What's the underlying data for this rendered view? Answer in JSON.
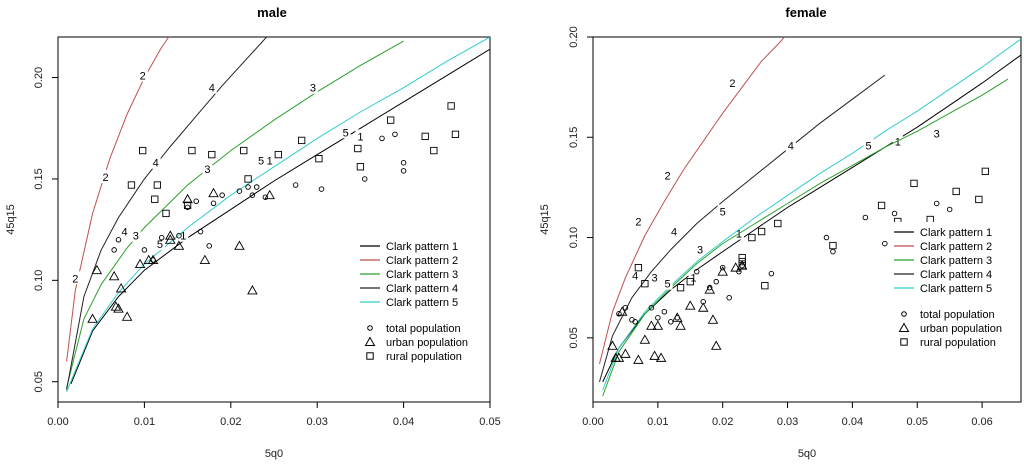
{
  "chart_data": [
    {
      "type": "line",
      "title": "male",
      "xlabel": "5q0",
      "ylabel": "45q15",
      "xlim": [
        0,
        0.05
      ],
      "ylim": [
        0.04,
        0.22
      ],
      "xticks": [
        0.0,
        0.01,
        0.02,
        0.03,
        0.04,
        0.05
      ],
      "xtick_labels": [
        "0.00",
        "0.01",
        "0.02",
        "0.03",
        "0.04",
        "0.05"
      ],
      "yticks": [
        0.05,
        0.1,
        0.15,
        0.2
      ],
      "ytick_labels": [
        "0.05",
        "0.10",
        "0.15",
        "0.20"
      ],
      "series": [
        {
          "name": "Clark pattern 1",
          "label": "1",
          "color": "#000000",
          "x": [
            0.0015,
            0.004,
            0.007,
            0.01,
            0.015,
            0.02,
            0.025,
            0.03,
            0.035,
            0.04,
            0.05
          ],
          "y": [
            0.049,
            0.075,
            0.092,
            0.105,
            0.121,
            0.135,
            0.149,
            0.162,
            0.175,
            0.188,
            0.214
          ],
          "labels_at": [
            [
              0.0145,
              0.122
            ],
            [
              0.0245,
              0.159
            ],
            [
              0.035,
              0.171
            ]
          ]
        },
        {
          "name": "Clark pattern 2",
          "label": "2",
          "color": "#c0504d",
          "x": [
            0.001,
            0.002,
            0.004,
            0.006,
            0.008,
            0.01,
            0.012,
            0.0135
          ],
          "y": [
            0.06,
            0.095,
            0.133,
            0.16,
            0.182,
            0.2,
            0.215,
            0.224
          ],
          "labels_at": [
            [
              0.002,
              0.101
            ],
            [
              0.0055,
              0.151
            ],
            [
              0.0098,
              0.201
            ]
          ]
        },
        {
          "name": "Clark pattern 3",
          "label": "3",
          "color": "#2ca02c",
          "x": [
            0.001,
            0.003,
            0.005,
            0.008,
            0.01,
            0.015,
            0.02,
            0.025,
            0.03,
            0.035,
            0.04
          ],
          "y": [
            0.047,
            0.081,
            0.098,
            0.116,
            0.126,
            0.147,
            0.164,
            0.179,
            0.193,
            0.206,
            0.218
          ],
          "labels_at": [
            [
              0.009,
              0.122
            ],
            [
              0.0173,
              0.155
            ],
            [
              0.0295,
              0.195
            ]
          ]
        },
        {
          "name": "Clark pattern 4",
          "label": "4",
          "color": "#222222",
          "x": [
            0.001,
            0.003,
            0.005,
            0.007,
            0.01,
            0.013,
            0.016,
            0.019,
            0.022,
            0.025
          ],
          "y": [
            0.046,
            0.092,
            0.115,
            0.131,
            0.15,
            0.166,
            0.181,
            0.196,
            0.21,
            0.224
          ],
          "labels_at": [
            [
              0.0077,
              0.124
            ],
            [
              0.0113,
              0.158
            ],
            [
              0.0178,
              0.195
            ]
          ]
        },
        {
          "name": "Clark pattern 5",
          "label": "5",
          "color": "#33cccc",
          "x": [
            0.001,
            0.004,
            0.007,
            0.01,
            0.015,
            0.02,
            0.025,
            0.03,
            0.035,
            0.04,
            0.045,
            0.05
          ],
          "y": [
            0.045,
            0.076,
            0.094,
            0.108,
            0.126,
            0.142,
            0.156,
            0.17,
            0.183,
            0.195,
            0.208,
            0.22
          ],
          "labels_at": [
            [
              0.0118,
              0.118
            ],
            [
              0.0235,
              0.159
            ],
            [
              0.0333,
              0.173
            ]
          ]
        }
      ],
      "points": {
        "total": [
          [
            0.0065,
            0.115
          ],
          [
            0.007,
            0.12
          ],
          [
            0.01,
            0.115
          ],
          [
            0.011,
            0.11
          ],
          [
            0.012,
            0.121
          ],
          [
            0.014,
            0.122
          ],
          [
            0.015,
            0.136
          ],
          [
            0.016,
            0.139
          ],
          [
            0.018,
            0.138
          ],
          [
            0.019,
            0.142
          ],
          [
            0.021,
            0.144
          ],
          [
            0.022,
            0.146
          ],
          [
            0.0225,
            0.142
          ],
          [
            0.023,
            0.146
          ],
          [
            0.024,
            0.141
          ],
          [
            0.0275,
            0.147
          ],
          [
            0.0305,
            0.145
          ],
          [
            0.0375,
            0.17
          ],
          [
            0.039,
            0.172
          ],
          [
            0.04,
            0.158
          ],
          [
            0.04,
            0.154
          ],
          [
            0.0355,
            0.15
          ],
          [
            0.0165,
            0.124
          ],
          [
            0.0175,
            0.117
          ]
        ],
        "urban": [
          [
            0.004,
            0.081
          ],
          [
            0.0045,
            0.105
          ],
          [
            0.0065,
            0.102
          ],
          [
            0.0067,
            0.087
          ],
          [
            0.007,
            0.086
          ],
          [
            0.0073,
            0.096
          ],
          [
            0.008,
            0.082
          ],
          [
            0.0095,
            0.108
          ],
          [
            0.0105,
            0.11
          ],
          [
            0.011,
            0.11
          ],
          [
            0.013,
            0.12
          ],
          [
            0.014,
            0.117
          ],
          [
            0.015,
            0.14
          ],
          [
            0.017,
            0.11
          ],
          [
            0.018,
            0.143
          ],
          [
            0.021,
            0.117
          ],
          [
            0.0225,
            0.095
          ],
          [
            0.0245,
            0.142
          ],
          [
            0.013,
            0.122
          ]
        ],
        "rural": [
          [
            0.0085,
            0.147
          ],
          [
            0.0098,
            0.164
          ],
          [
            0.0112,
            0.14
          ],
          [
            0.0115,
            0.147
          ],
          [
            0.0125,
            0.133
          ],
          [
            0.015,
            0.137
          ],
          [
            0.0155,
            0.164
          ],
          [
            0.0178,
            0.162
          ],
          [
            0.0215,
            0.164
          ],
          [
            0.0255,
            0.162
          ],
          [
            0.0282,
            0.169
          ],
          [
            0.0302,
            0.16
          ],
          [
            0.0347,
            0.165
          ],
          [
            0.035,
            0.156
          ],
          [
            0.0385,
            0.179
          ],
          [
            0.0425,
            0.171
          ],
          [
            0.0435,
            0.164
          ],
          [
            0.0455,
            0.186
          ],
          [
            0.046,
            0.172
          ],
          [
            0.022,
            0.15
          ]
        ]
      }
    },
    {
      "type": "line",
      "title": "female",
      "xlabel": "5q0",
      "ylabel": "45q15",
      "xlim": [
        0,
        0.066
      ],
      "ylim": [
        0.018,
        0.2
      ],
      "xticks": [
        0.0,
        0.01,
        0.02,
        0.03,
        0.04,
        0.05,
        0.06
      ],
      "xtick_labels": [
        "0.00",
        "0.01",
        "0.02",
        "0.03",
        "0.04",
        "0.05",
        "0.06"
      ],
      "yticks": [
        0.05,
        0.1,
        0.15,
        0.2
      ],
      "ytick_labels": [
        "0.05",
        "0.10",
        "0.15",
        "0.20"
      ],
      "series": [
        {
          "name": "Clark pattern 1",
          "label": "1",
          "color": "#000000",
          "x": [
            0.0015,
            0.004,
            0.008,
            0.012,
            0.016,
            0.02,
            0.025,
            0.03,
            0.035,
            0.04,
            0.045,
            0.05,
            0.055,
            0.06,
            0.066
          ],
          "y": [
            0.028,
            0.045,
            0.062,
            0.074,
            0.084,
            0.093,
            0.104,
            0.115,
            0.125,
            0.135,
            0.145,
            0.155,
            0.166,
            0.177,
            0.191
          ],
          "labels_at": [
            [
              0.0155,
              0.08
            ],
            [
              0.0225,
              0.102
            ],
            [
              0.047,
              0.148
            ]
          ]
        },
        {
          "name": "Clark pattern 2",
          "label": "2",
          "color": "#c0504d",
          "x": [
            0.001,
            0.003,
            0.005,
            0.008,
            0.011,
            0.014,
            0.017,
            0.02,
            0.023,
            0.026,
            0.029,
            0.0305
          ],
          "y": [
            0.037,
            0.063,
            0.08,
            0.101,
            0.118,
            0.134,
            0.148,
            0.162,
            0.175,
            0.188,
            0.198,
            0.204
          ],
          "labels_at": [
            [
              0.007,
              0.108
            ],
            [
              0.0115,
              0.131
            ],
            [
              0.0215,
              0.177
            ]
          ]
        },
        {
          "name": "Clark pattern 3",
          "label": "3",
          "color": "#2ca02c",
          "x": [
            0.0015,
            0.004,
            0.008,
            0.012,
            0.016,
            0.02,
            0.025,
            0.03,
            0.035,
            0.04,
            0.045,
            0.05,
            0.055,
            0.06,
            0.064
          ],
          "y": [
            0.021,
            0.043,
            0.062,
            0.075,
            0.087,
            0.097,
            0.107,
            0.117,
            0.127,
            0.136,
            0.145,
            0.153,
            0.162,
            0.171,
            0.179
          ],
          "labels_at": [
            [
              0.0095,
              0.08
            ],
            [
              0.0165,
              0.094
            ],
            [
              0.053,
              0.152
            ]
          ]
        },
        {
          "name": "Clark pattern 4",
          "label": "4",
          "color": "#222222",
          "x": [
            0.001,
            0.003,
            0.006,
            0.009,
            0.012,
            0.016,
            0.02,
            0.025,
            0.03,
            0.035,
            0.04,
            0.045
          ],
          "y": [
            0.028,
            0.051,
            0.07,
            0.083,
            0.094,
            0.107,
            0.118,
            0.131,
            0.144,
            0.157,
            0.169,
            0.181
          ],
          "labels_at": [
            [
              0.0065,
              0.081
            ],
            [
              0.0125,
              0.103
            ],
            [
              0.0305,
              0.146
            ]
          ]
        },
        {
          "name": "Clark pattern 5",
          "label": "5",
          "color": "#33cccc",
          "x": [
            0.0015,
            0.004,
            0.008,
            0.012,
            0.016,
            0.02,
            0.025,
            0.03,
            0.035,
            0.04,
            0.045,
            0.05,
            0.055,
            0.06,
            0.066
          ],
          "y": [
            0.024,
            0.045,
            0.063,
            0.076,
            0.088,
            0.098,
            0.11,
            0.121,
            0.132,
            0.142,
            0.153,
            0.163,
            0.174,
            0.185,
            0.199
          ],
          "labels_at": [
            [
              0.0115,
              0.077
            ],
            [
              0.02,
              0.113
            ],
            [
              0.0425,
              0.146
            ]
          ]
        }
      ],
      "points": {
        "total": [
          [
            0.004,
            0.062
          ],
          [
            0.005,
            0.065
          ],
          [
            0.006,
            0.059
          ],
          [
            0.0065,
            0.058
          ],
          [
            0.009,
            0.065
          ],
          [
            0.01,
            0.06
          ],
          [
            0.011,
            0.063
          ],
          [
            0.012,
            0.058
          ],
          [
            0.013,
            0.06
          ],
          [
            0.016,
            0.083
          ],
          [
            0.017,
            0.068
          ],
          [
            0.018,
            0.075
          ],
          [
            0.019,
            0.078
          ],
          [
            0.02,
            0.085
          ],
          [
            0.021,
            0.07
          ],
          [
            0.0225,
            0.083
          ],
          [
            0.023,
            0.086
          ],
          [
            0.0275,
            0.082
          ],
          [
            0.036,
            0.1
          ],
          [
            0.037,
            0.093
          ],
          [
            0.042,
            0.11
          ],
          [
            0.045,
            0.097
          ],
          [
            0.0465,
            0.112
          ],
          [
            0.049,
            0.099
          ],
          [
            0.053,
            0.117
          ],
          [
            0.055,
            0.114
          ]
        ],
        "urban": [
          [
            0.003,
            0.046
          ],
          [
            0.0035,
            0.04
          ],
          [
            0.004,
            0.04
          ],
          [
            0.005,
            0.042
          ],
          [
            0.007,
            0.039
          ],
          [
            0.008,
            0.049
          ],
          [
            0.009,
            0.056
          ],
          [
            0.0095,
            0.041
          ],
          [
            0.01,
            0.056
          ],
          [
            0.0105,
            0.04
          ],
          [
            0.013,
            0.06
          ],
          [
            0.0135,
            0.056
          ],
          [
            0.015,
            0.066
          ],
          [
            0.017,
            0.065
          ],
          [
            0.018,
            0.074
          ],
          [
            0.0185,
            0.059
          ],
          [
            0.019,
            0.046
          ],
          [
            0.02,
            0.083
          ],
          [
            0.022,
            0.085
          ],
          [
            0.023,
            0.086
          ],
          [
            0.0045,
            0.063
          ]
        ],
        "rural": [
          [
            0.007,
            0.085
          ],
          [
            0.008,
            0.077
          ],
          [
            0.0135,
            0.075
          ],
          [
            0.015,
            0.078
          ],
          [
            0.023,
            0.086
          ],
          [
            0.023,
            0.088
          ],
          [
            0.023,
            0.09
          ],
          [
            0.0245,
            0.1
          ],
          [
            0.026,
            0.103
          ],
          [
            0.0265,
            0.076
          ],
          [
            0.0285,
            0.107
          ],
          [
            0.037,
            0.096
          ],
          [
            0.0445,
            0.116
          ],
          [
            0.047,
            0.108
          ],
          [
            0.0495,
            0.127
          ],
          [
            0.052,
            0.109
          ],
          [
            0.056,
            0.123
          ],
          [
            0.0595,
            0.119
          ],
          [
            0.0605,
            0.133
          ]
        ]
      }
    }
  ],
  "legend": {
    "lines": [
      "Clark pattern 1",
      "Clark pattern 2",
      "Clark pattern 3",
      "Clark pattern 4",
      "Clark pattern 5"
    ],
    "line_colors": [
      "#000000",
      "#c0504d",
      "#2ca02c",
      "#222222",
      "#33cccc"
    ],
    "points": [
      "total population",
      "urban population",
      "rural population"
    ],
    "point_shapes": [
      "circle",
      "triangle",
      "square"
    ]
  }
}
